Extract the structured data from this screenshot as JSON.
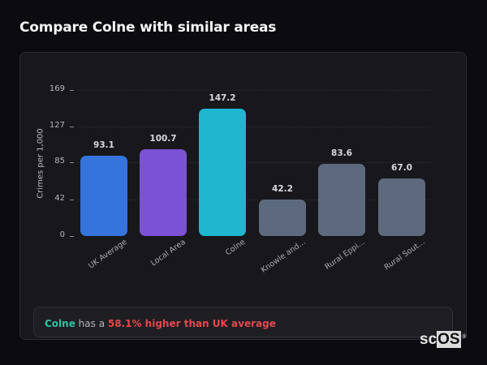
{
  "page": {
    "title": "Compare Colne with similar areas"
  },
  "summary": {
    "area": "Colne",
    "connector": " has a ",
    "highlight": "58.1% higher than UK average"
  },
  "logo": {
    "prefix": "sc",
    "boxed": "OS",
    "mark": "®"
  },
  "colors": {
    "uk_average": "#3574db",
    "local_area": "#7b52d6",
    "colne": "#1fb6cf",
    "comparison": "#5d6a7e",
    "positive_area": "#2ec4a6",
    "alert": "#e5484d"
  },
  "chart_data": {
    "type": "bar",
    "title": "Compare Colne with similar areas",
    "xlabel": "",
    "ylabel": "Crimes per 1,000",
    "ylim": [
      0,
      169
    ],
    "yticks": [
      0,
      42,
      85,
      127,
      169
    ],
    "grid": true,
    "legend": "none",
    "categories": [
      "UK Average",
      "Local Area",
      "Colne",
      "Knowle and...",
      "Rural Eppi...",
      "Rural Sout..."
    ],
    "values": [
      93.1,
      100.7,
      147.2,
      42.2,
      83.6,
      67.0
    ],
    "value_labels": [
      "93.1",
      "100.7",
      "147.2",
      "42.2",
      "83.6",
      "67.0"
    ],
    "bar_colors": [
      "#3574db",
      "#7b52d6",
      "#1fb6cf",
      "#5d6a7e",
      "#5d6a7e",
      "#5d6a7e"
    ]
  }
}
